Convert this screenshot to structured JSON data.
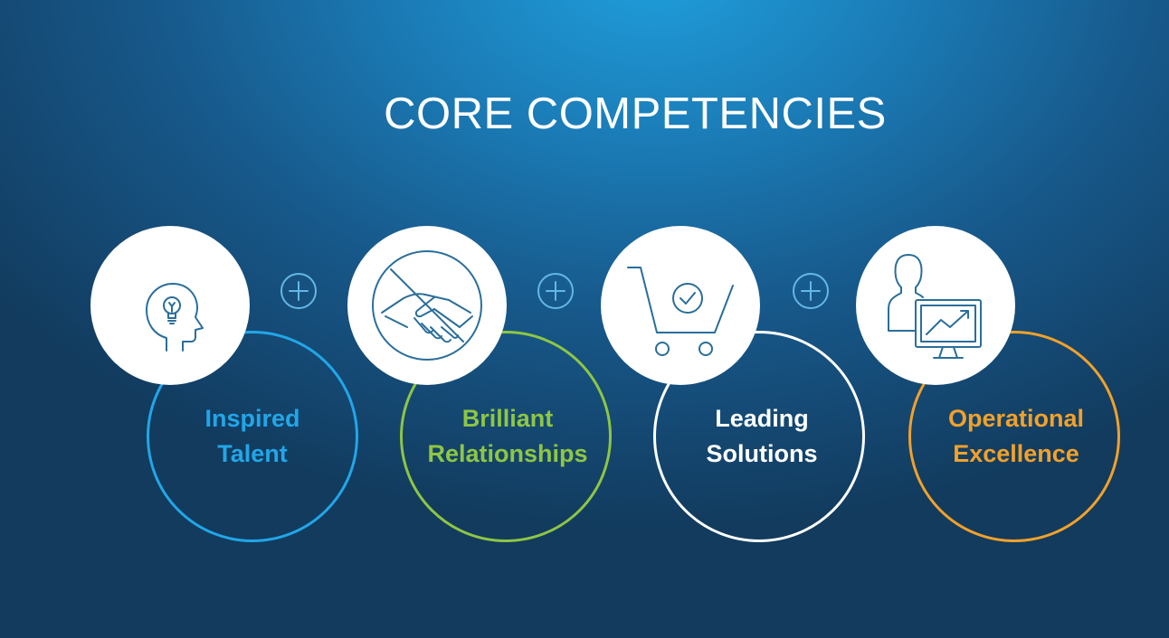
{
  "title": "CORE COMPETENCIES",
  "competencies": [
    {
      "line1": "Inspired",
      "line2": "Talent",
      "color": "#22a6e8",
      "icon": "head-lightbulb-icon"
    },
    {
      "line1": "Brilliant",
      "line2": "Relationships",
      "color": "#8ec643",
      "icon": "handshake-icon"
    },
    {
      "line1": "Leading",
      "line2": "Solutions",
      "color": "#ffffff",
      "icon": "cart-check-icon"
    },
    {
      "line1": "Operational",
      "line2": "Excellence",
      "color": "#f2a12a",
      "icon": "person-monitor-chart-icon"
    }
  ],
  "connector_icon": "plus-circle-icon",
  "colors": {
    "icon_stroke": "#2a6e9a",
    "plus_stroke": "#64b7e6"
  }
}
